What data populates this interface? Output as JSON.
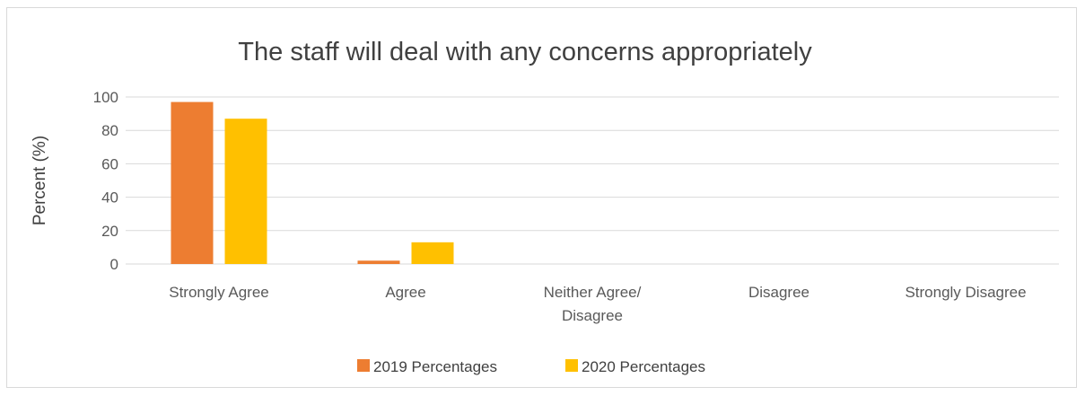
{
  "chart_data": {
    "type": "bar",
    "title": "The staff will deal with any concerns appropriately",
    "xlabel": "",
    "ylabel": "Percent (%)",
    "ylim": [
      0,
      100
    ],
    "yticks": [
      0,
      20,
      40,
      60,
      80,
      100
    ],
    "grid": true,
    "legend_position": "bottom",
    "categories": [
      [
        "Strongly Agree"
      ],
      [
        "Agree"
      ],
      [
        "Neither Agree/",
        "Disagree"
      ],
      [
        "Disagree"
      ],
      [
        "Strongly Disagree"
      ]
    ],
    "series": [
      {
        "name": "2019 Percentages",
        "color": "#ed7d31",
        "values": [
          97,
          2,
          0,
          0,
          0
        ]
      },
      {
        "name": "2020 Percentages",
        "color": "#ffc000",
        "values": [
          87,
          13,
          0,
          0,
          0
        ]
      }
    ]
  }
}
